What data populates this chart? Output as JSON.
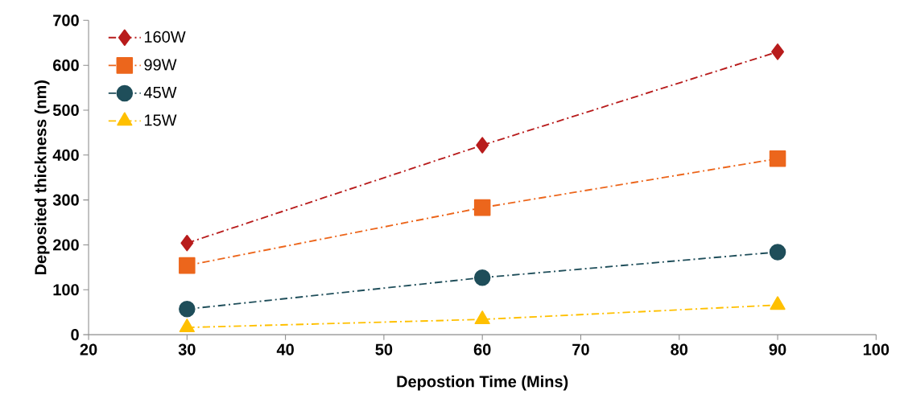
{
  "chart_data": {
    "type": "line",
    "xlabel": "Depostion Time  (Mins)",
    "ylabel": "Deposited thickness  (nm)",
    "x": [
      30,
      60,
      90
    ],
    "series": [
      {
        "name": "160W",
        "color": "#b81c1c",
        "marker": "diamond",
        "values": [
          204,
          422,
          630
        ]
      },
      {
        "name": "99W",
        "color": "#ec661c",
        "marker": "square",
        "values": [
          154,
          283,
          392
        ]
      },
      {
        "name": "45W",
        "color": "#1f4e5a",
        "marker": "circle",
        "values": [
          57,
          127,
          184
        ]
      },
      {
        "name": "15W",
        "color": "#ffc000",
        "marker": "triangle",
        "values": [
          16,
          34,
          66
        ]
      }
    ],
    "xlim": [
      20,
      100
    ],
    "xticks": [
      20,
      30,
      40,
      50,
      60,
      70,
      80,
      90,
      100
    ],
    "ylim": [
      0,
      700
    ],
    "yticks": [
      0,
      100,
      200,
      300,
      400,
      500,
      600,
      700
    ],
    "grid": false,
    "legend": "top left",
    "line_style": "dashdot"
  }
}
